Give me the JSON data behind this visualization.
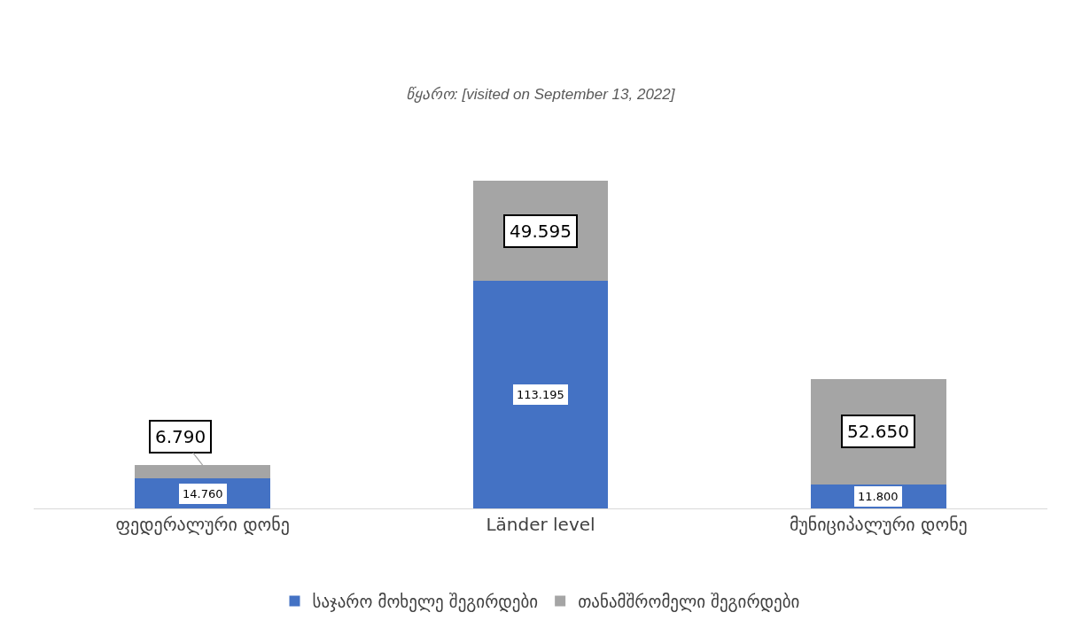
{
  "chart_data": {
    "type": "bar",
    "stacked": true,
    "annotations": [
      "წყარო: [visited on September 13, 2022]"
    ],
    "categories": [
      "ფედერალური დონე",
      "Länder level",
      "მუნიციპალური დონე"
    ],
    "series": [
      {
        "name": "საჯარო მოხელე შეგირდები",
        "color": "#4472c4",
        "values": [
          14760,
          113195,
          11800
        ],
        "value_labels": [
          "14.760",
          "113.195",
          "11.800"
        ]
      },
      {
        "name": "თანამშრომელი შეგირდები",
        "color": "#a5a5a5",
        "values": [
          6790,
          49595,
          52650
        ],
        "value_labels": [
          "6.790",
          "49.595",
          "52.650"
        ]
      }
    ],
    "grid": false,
    "legend": "bottom"
  }
}
